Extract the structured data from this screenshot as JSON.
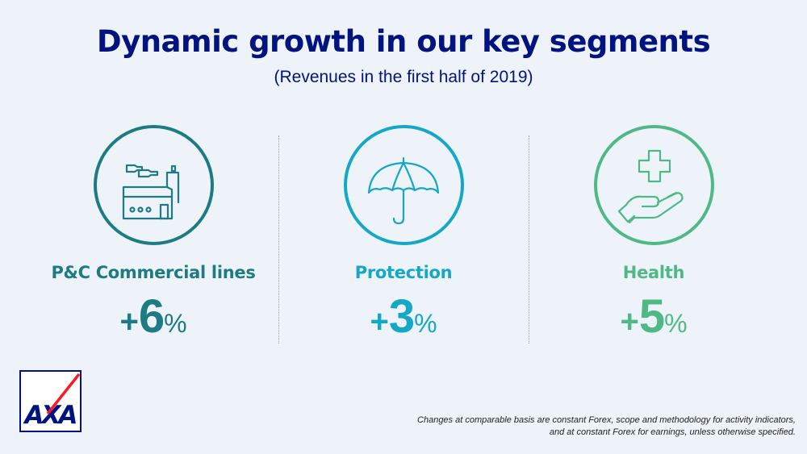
{
  "header": {
    "title": "Dynamic growth in our key segments",
    "subtitle": "(Revenues in the first half of 2019)"
  },
  "segments": [
    {
      "label": "P&C Commercial lines",
      "sign": "+",
      "number": "6",
      "unit": "%",
      "icon": "factory-icon",
      "color": "#1d7b83"
    },
    {
      "label": "Protection",
      "sign": "+",
      "number": "3",
      "unit": "%",
      "icon": "umbrella-icon",
      "color": "#14a8c6"
    },
    {
      "label": "Health",
      "sign": "+",
      "number": "5",
      "unit": "%",
      "icon": "health-hand-icon",
      "color": "#4fb986"
    }
  ],
  "logo": {
    "text": "AXA",
    "slash_color": "#ff1721",
    "brand_color": "#00137f"
  },
  "footnote": {
    "line1": "Changes at comparable basis are constant Forex, scope and methodology for activity indicators,",
    "line2": "and at constant Forex for earnings, unless otherwise specified."
  }
}
